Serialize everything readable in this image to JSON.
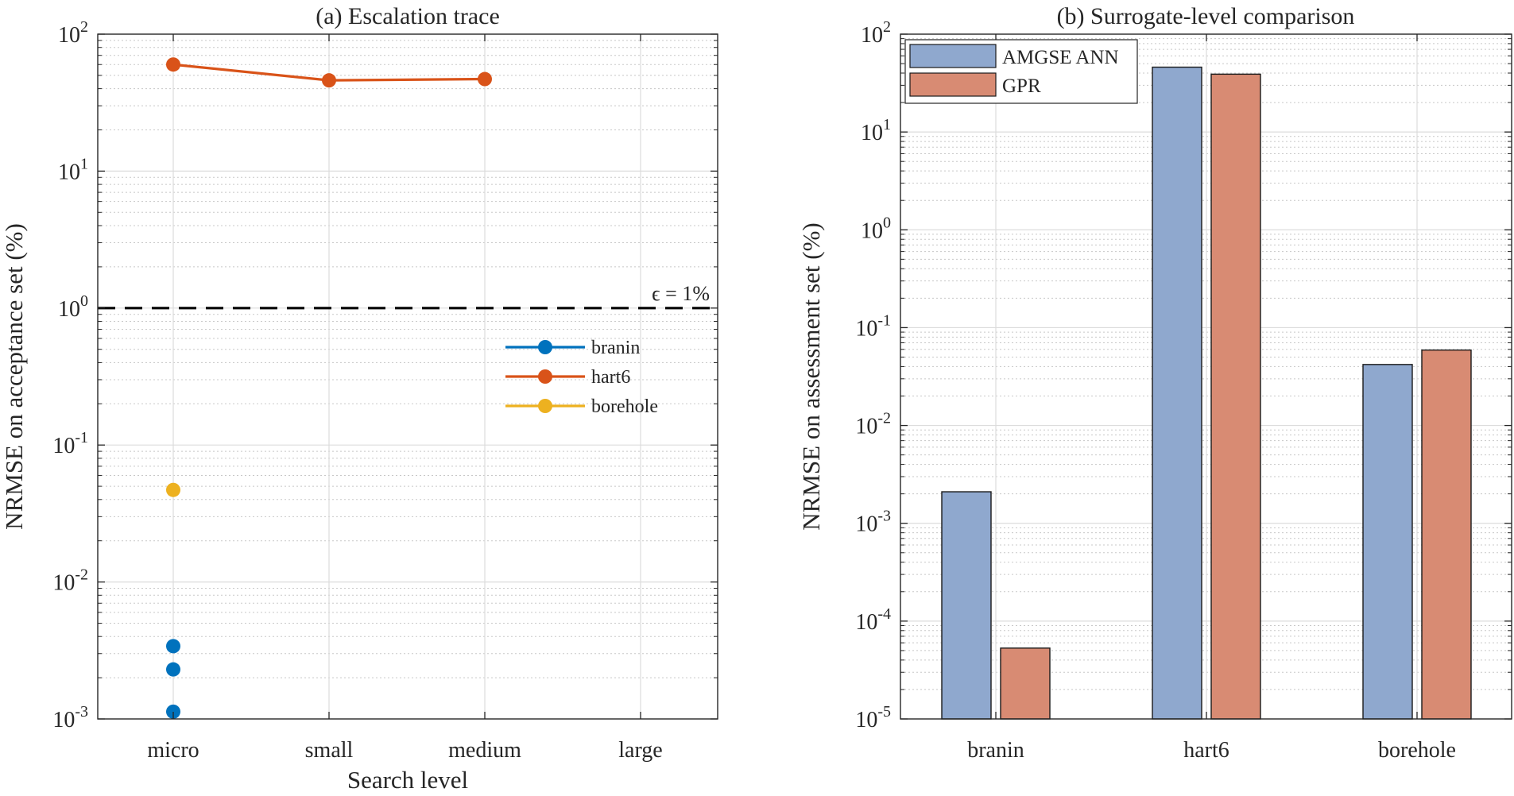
{
  "chart_data": [
    {
      "panel": "a",
      "type": "line",
      "title": "(a) Escalation trace",
      "xlabel": "Search level",
      "ylabel": "NRMSE on acceptance set (%)",
      "categories": [
        "micro",
        "small",
        "medium",
        "large"
      ],
      "yscale": "log",
      "ylim": [
        0.001,
        100
      ],
      "yticks": [
        {
          "value": 0.001,
          "base": "10",
          "exp": "-3"
        },
        {
          "value": 0.01,
          "base": "10",
          "exp": "-2"
        },
        {
          "value": 0.1,
          "base": "10",
          "exp": "-1"
        },
        {
          "value": 1,
          "base": "10",
          "exp": "0"
        },
        {
          "value": 10,
          "base": "10",
          "exp": "1"
        },
        {
          "value": 100,
          "base": "10",
          "exp": "2"
        }
      ],
      "grid": true,
      "legend_position": "center-right",
      "series": [
        {
          "name": "branin",
          "color": "#0072BD",
          "points": [
            [
              "micro",
              0.0034
            ],
            [
              "micro",
              0.0023
            ],
            [
              "micro",
              0.00113
            ]
          ]
        },
        {
          "name": "hart6",
          "color": "#D95319",
          "points": [
            [
              "micro",
              60
            ],
            [
              "small",
              46
            ],
            [
              "medium",
              47
            ]
          ]
        },
        {
          "name": "borehole",
          "color": "#EDB120",
          "points": [
            [
              "micro",
              0.047
            ]
          ]
        }
      ],
      "reference_line": {
        "value": 1,
        "label": "ϵ = 1%",
        "style": "dashed",
        "color": "#000000"
      }
    },
    {
      "panel": "b",
      "type": "bar",
      "title": "(b) Surrogate-level comparison",
      "xlabel": "",
      "ylabel": "NRMSE on assessment set (%)",
      "categories": [
        "branin",
        "hart6",
        "borehole"
      ],
      "yscale": "log",
      "ylim": [
        1e-05,
        100
      ],
      "yticks": [
        {
          "value": 1e-05,
          "base": "10",
          "exp": "-5"
        },
        {
          "value": 0.0001,
          "base": "10",
          "exp": "-4"
        },
        {
          "value": 0.001,
          "base": "10",
          "exp": "-3"
        },
        {
          "value": 0.01,
          "base": "10",
          "exp": "-2"
        },
        {
          "value": 0.1,
          "base": "10",
          "exp": "-1"
        },
        {
          "value": 1,
          "base": "10",
          "exp": "0"
        },
        {
          "value": 10,
          "base": "10",
          "exp": "1"
        },
        {
          "value": 100,
          "base": "10",
          "exp": "2"
        }
      ],
      "grid": true,
      "legend_position": "top-left",
      "series": [
        {
          "name": "AMGSE ANN",
          "color": "#8FA8CE",
          "values": [
            0.0021,
            46,
            0.042
          ]
        },
        {
          "name": "GPR",
          "color": "#D88B73",
          "values": [
            5.3e-05,
            39,
            0.059
          ]
        }
      ]
    }
  ]
}
